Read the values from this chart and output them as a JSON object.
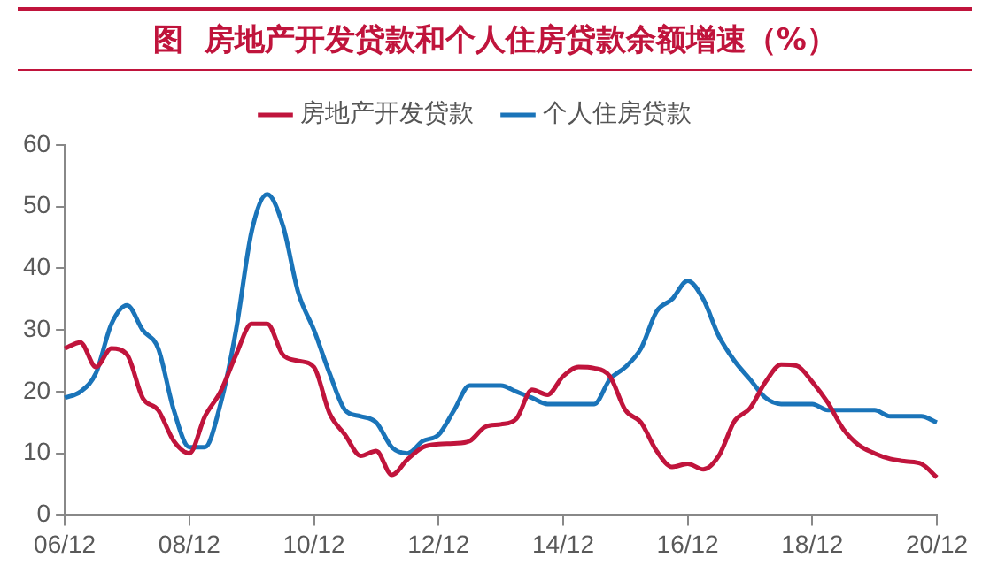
{
  "chart_data": {
    "type": "line",
    "title": "图  房地产开发贷款和个人住房贷款余额增速（%）",
    "categories": [
      "06/12",
      null,
      null,
      null,
      null,
      null,
      null,
      null,
      "08/12",
      null,
      null,
      null,
      null,
      null,
      null,
      null,
      "10/12",
      null,
      null,
      null,
      null,
      null,
      null,
      null,
      "12/12",
      null,
      null,
      null,
      null,
      null,
      null,
      null,
      "14/12",
      null,
      null,
      null,
      null,
      null,
      null,
      null,
      "16/12",
      null,
      null,
      null,
      null,
      null,
      null,
      null,
      "18/12",
      null,
      null,
      null,
      null,
      null,
      null,
      null,
      "20/12"
    ],
    "series": [
      {
        "name": "房地产开发贷款",
        "color": "#c0143c",
        "values": [
          27,
          28,
          24,
          27,
          26,
          19,
          17,
          12,
          10,
          16,
          20,
          26,
          31,
          31,
          26,
          25,
          24,
          16.5,
          13,
          9.6,
          10.4,
          6.5,
          9,
          11,
          11.5,
          11.6,
          12,
          14.3,
          14.7,
          15.6,
          20.3,
          19.5,
          22.5,
          24,
          23.8,
          22.5,
          17,
          15,
          10.4,
          7.8,
          8.3,
          7.4,
          9.6,
          15.2,
          17.3,
          21.6,
          24.4,
          24.2,
          21.6,
          18.2,
          13.9,
          11.3,
          10,
          9.1,
          8.7,
          8.3,
          6.1
        ]
      },
      {
        "name": "个人住房贷款",
        "color": "#1a74b9",
        "values": [
          19,
          20,
          23,
          31,
          34,
          30,
          27,
          17,
          11,
          11,
          18,
          30,
          46,
          52,
          47,
          36,
          30,
          23,
          17,
          16,
          15,
          11,
          10,
          12,
          13,
          17,
          21,
          21,
          21,
          20,
          19,
          18,
          18,
          18,
          18,
          22,
          24,
          27,
          33,
          35,
          38,
          35,
          29,
          25,
          22,
          19,
          18,
          18,
          18,
          17,
          17,
          17,
          17,
          16,
          16,
          16,
          15
        ]
      }
    ],
    "ylim": [
      0,
      60
    ],
    "yticks": [
      0,
      10,
      20,
      30,
      40,
      50,
      60
    ],
    "grid": false,
    "legend": "top",
    "marker": "none",
    "line_style": "solid"
  }
}
